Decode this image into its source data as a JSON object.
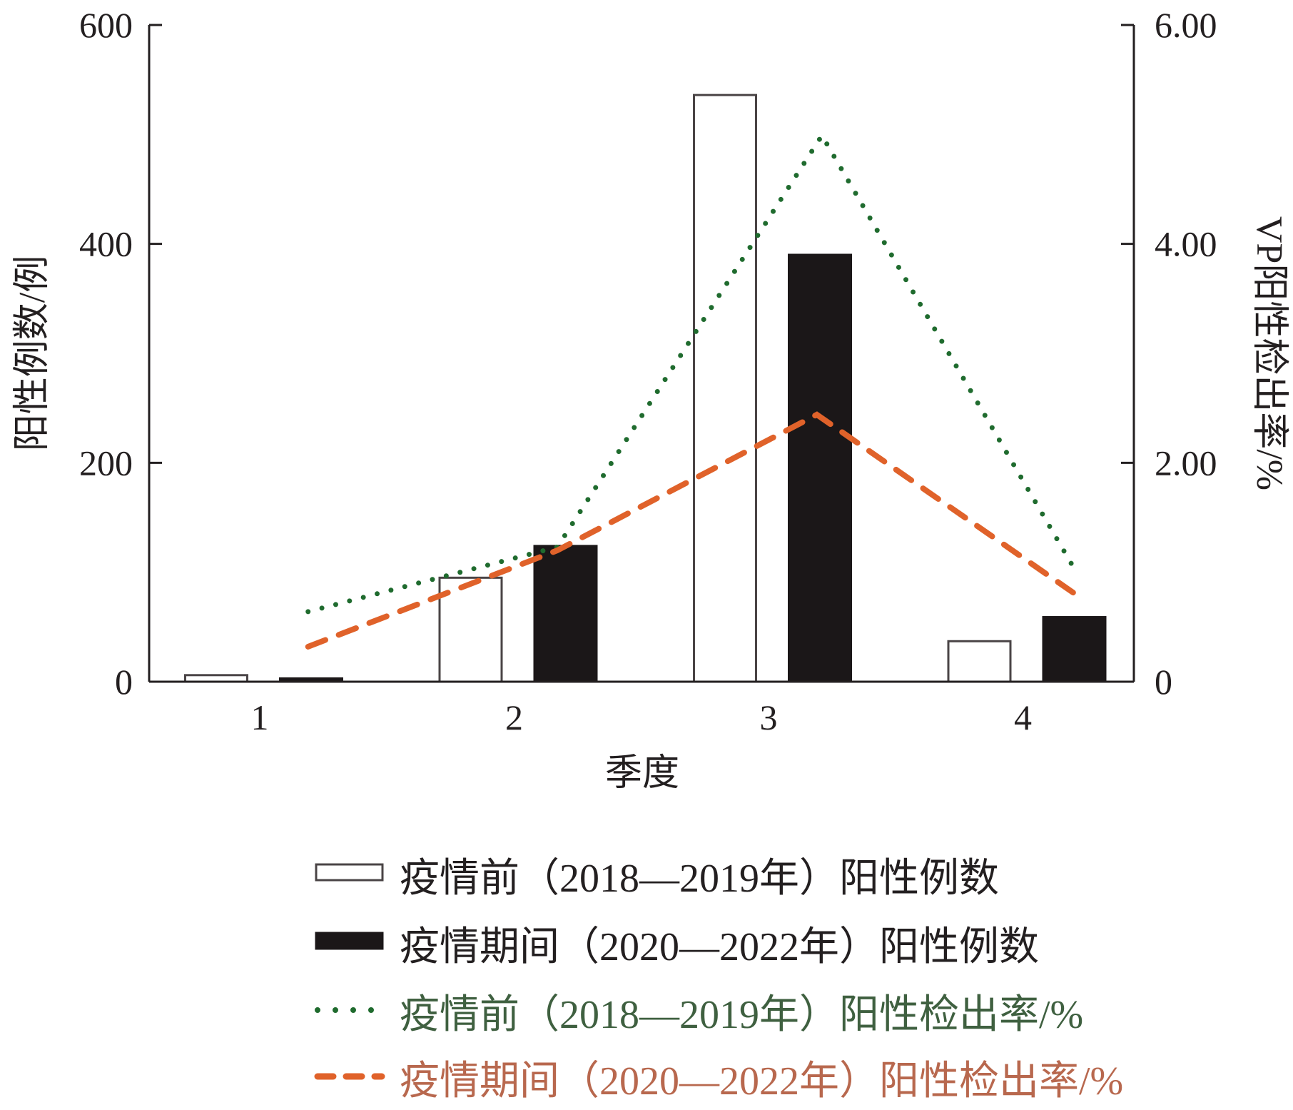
{
  "chart_data": {
    "type": "bar",
    "title": "",
    "xlabel": "季度",
    "ylabel": "阳性例数/例",
    "y2label": "VP阳性检出率/%",
    "categories": [
      "1",
      "2",
      "3",
      "4"
    ],
    "ylim": [
      0,
      600
    ],
    "yticks": [
      "0",
      "200",
      "400",
      "600"
    ],
    "y2lim": [
      0,
      6
    ],
    "y2ticks": [
      "0",
      "2.00",
      "4.00",
      "6.00"
    ],
    "grid": false,
    "legend_position": "bottom",
    "series": [
      {
        "name": "疫情前（2018—2019年）阳性例数",
        "type": "bar",
        "axis": "left",
        "values": [
          6,
          95,
          536,
          37
        ],
        "color": "#ffffff",
        "stroke": "#4a4446"
      },
      {
        "name": "疫情期间（2020—2022年）阳性例数",
        "type": "bar",
        "axis": "left",
        "values": [
          3,
          124,
          390,
          59
        ],
        "color": "#1b1718",
        "stroke": "#1b1718"
      },
      {
        "name": "疫情前（2018—2019年）阳性检出率/%",
        "type": "line",
        "style": "dotted",
        "axis": "right",
        "x": [
          1.19,
          2.17,
          3.21,
          4.2
        ],
        "values": [
          0.64,
          1.23,
          4.99,
          1.04
        ],
        "color": "#1f6b2e",
        "text_color": "#3f6040"
      },
      {
        "name": "疫情期间（2020—2022年）阳性检出率/%",
        "type": "line",
        "style": "dashed",
        "axis": "right",
        "x": [
          1.19,
          2.17,
          3.19,
          4.2
        ],
        "values": [
          0.32,
          1.2,
          2.44,
          0.81
        ],
        "color": "#e0622a",
        "text_color": "#b8684e"
      }
    ]
  }
}
